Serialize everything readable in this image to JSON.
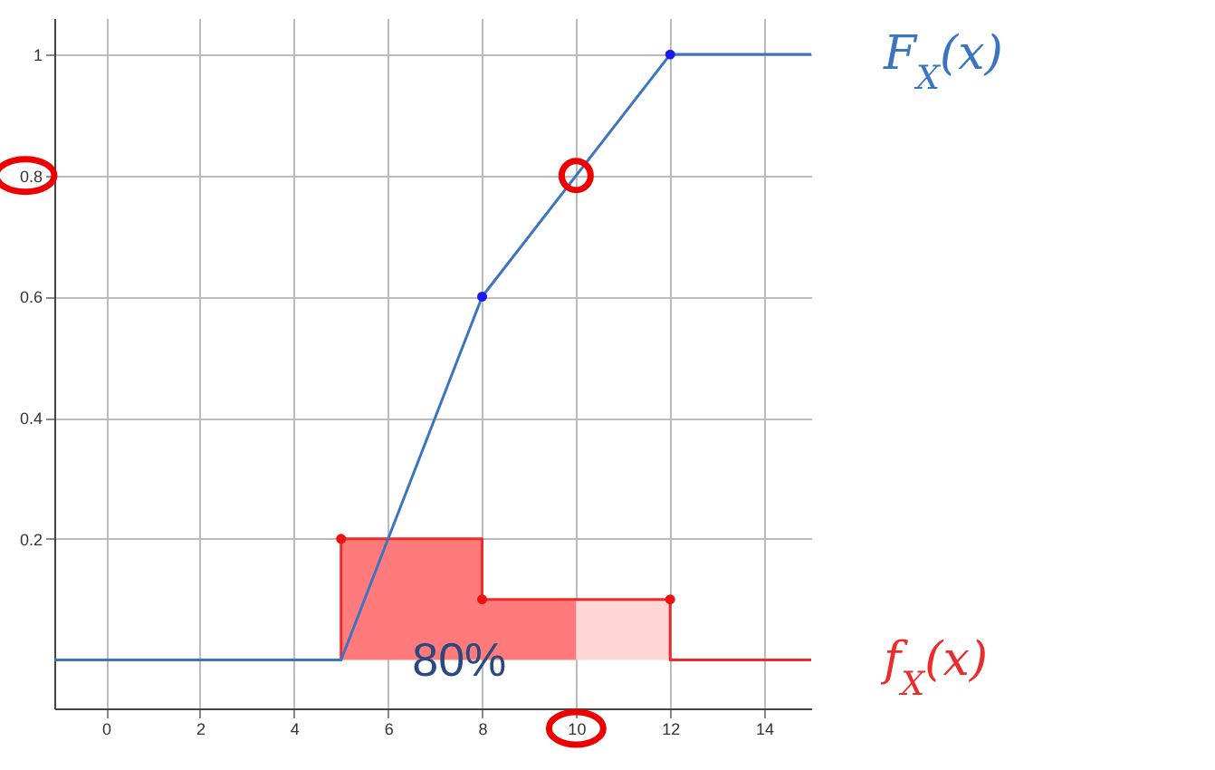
{
  "chart_data": {
    "type": "line",
    "xlim": [
      -1.1,
      15
    ],
    "ylim": [
      -0.08,
      1.06
    ],
    "xticks": [
      0,
      2,
      4,
      6,
      8,
      10,
      12,
      14
    ],
    "yticks": [
      0.2,
      0.4,
      0.6,
      0.8,
      1
    ],
    "grid": true,
    "legend": false,
    "line_style": "solid",
    "series": [
      {
        "type": "area",
        "color": "#ff7b7b",
        "x": [
          5,
          8,
          8,
          10
        ],
        "values": [
          0.2,
          0.2,
          0.1,
          0.1
        ]
      },
      {
        "type": "area",
        "color": "#ffd6d6",
        "x": [
          10,
          12
        ],
        "values": [
          0.1,
          0.1
        ]
      },
      {
        "name": "f$_{X}$(x)",
        "color": "#ee2b2b",
        "x": [
          -1.1,
          5,
          5,
          8,
          8,
          12,
          12,
          15
        ],
        "values": [
          0,
          0,
          0.2,
          0.2,
          0.1,
          0.1,
          0,
          0
        ]
      },
      {
        "name": "F$_{X}$(x)",
        "color": "#3b74c0",
        "x": [
          -1.1,
          5,
          8,
          12,
          15
        ],
        "values": [
          0,
          0,
          0.6,
          1,
          1
        ]
      },
      {
        "type": "scatter",
        "color": "#ee1111",
        "marker": "circle",
        "x": [
          5,
          8,
          12
        ],
        "values": [
          0.2,
          0.1,
          0.1
        ]
      },
      {
        "type": "scatter",
        "color": "#1a1aee",
        "marker": "circle",
        "x": [
          8,
          12
        ],
        "values": [
          0.6,
          1
        ]
      }
    ],
    "annotations": [
      "80%"
    ]
  }
}
